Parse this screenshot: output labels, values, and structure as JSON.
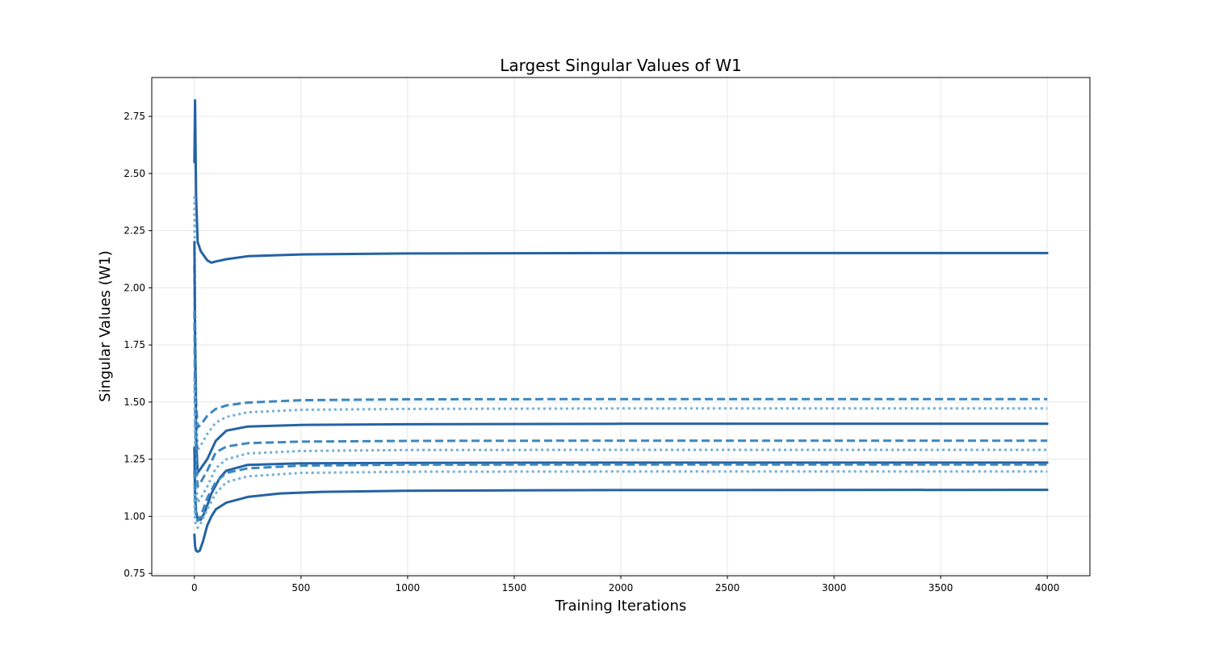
{
  "chart_data": {
    "type": "line",
    "title": "Largest Singular Values of W1",
    "xlabel": "Training Iterations",
    "ylabel": "Singular Values (W1)",
    "xlim": [
      -200,
      4200
    ],
    "ylim": [
      0.74,
      2.92
    ],
    "xticks": [
      0,
      500,
      1000,
      1500,
      2000,
      2500,
      3000,
      3500,
      4000
    ],
    "xtick_labels": [
      "0",
      "500",
      "1000",
      "1500",
      "2000",
      "2500",
      "3000",
      "3500",
      "4000"
    ],
    "yticks": [
      0.75,
      1.0,
      1.25,
      1.5,
      1.75,
      2.0,
      2.25,
      2.5,
      2.75
    ],
    "ytick_labels": [
      "0.75",
      "1.00",
      "1.25",
      "1.50",
      "1.75",
      "2.00",
      "2.25",
      "2.50",
      "2.75"
    ],
    "grid": true,
    "legend": "none",
    "series": [
      {
        "style": "solid",
        "color": "#2463a4",
        "x": [
          0,
          3,
          8,
          15,
          30,
          60,
          80,
          100,
          150,
          250,
          500,
          1000,
          2000,
          4000
        ],
        "y": [
          2.55,
          2.82,
          2.4,
          2.2,
          2.16,
          2.12,
          2.11,
          2.115,
          2.125,
          2.138,
          2.146,
          2.15,
          2.152,
          2.152
        ]
      },
      {
        "style": "dashed",
        "color": "#3b87be",
        "x": [
          0,
          3,
          8,
          15,
          30,
          60,
          100,
          150,
          250,
          500,
          1000,
          2000,
          4000
        ],
        "y": [
          2.1,
          1.8,
          1.5,
          1.39,
          1.4,
          1.44,
          1.47,
          1.485,
          1.498,
          1.508,
          1.512,
          1.513,
          1.513
        ]
      },
      {
        "style": "dotted",
        "color": "#72afd9",
        "x": [
          0,
          3,
          8,
          15,
          30,
          60,
          100,
          150,
          250,
          500,
          1000,
          2000,
          4000
        ],
        "y": [
          2.4,
          1.9,
          1.45,
          1.29,
          1.31,
          1.36,
          1.41,
          1.435,
          1.455,
          1.466,
          1.47,
          1.472,
          1.472
        ]
      },
      {
        "style": "solid",
        "color": "#2463a4",
        "x": [
          0,
          3,
          8,
          15,
          30,
          60,
          100,
          150,
          250,
          500,
          1000,
          2000,
          4000
        ],
        "y": [
          2.2,
          1.8,
          1.35,
          1.19,
          1.21,
          1.25,
          1.33,
          1.375,
          1.393,
          1.4,
          1.403,
          1.405,
          1.405
        ]
      },
      {
        "style": "dashed",
        "color": "#3b87be",
        "x": [
          0,
          3,
          8,
          15,
          30,
          60,
          100,
          150,
          250,
          500,
          1000,
          2000,
          4000
        ],
        "y": [
          1.9,
          1.5,
          1.25,
          1.13,
          1.15,
          1.2,
          1.28,
          1.305,
          1.32,
          1.327,
          1.33,
          1.331,
          1.331
        ]
      },
      {
        "style": "dotted",
        "color": "#72afd9",
        "x": [
          0,
          3,
          8,
          15,
          30,
          60,
          100,
          150,
          250,
          500,
          1000,
          2000,
          4000
        ],
        "y": [
          1.6,
          1.3,
          1.15,
          1.06,
          1.08,
          1.13,
          1.21,
          1.25,
          1.275,
          1.286,
          1.29,
          1.291,
          1.291
        ]
      },
      {
        "style": "solid",
        "color": "#2463a4",
        "x": [
          0,
          3,
          8,
          15,
          30,
          50,
          80,
          120,
          150,
          250,
          500,
          1000,
          2000,
          4000
        ],
        "y": [
          1.3,
          1.1,
          1.02,
          0.99,
          0.985,
          1.02,
          1.1,
          1.17,
          1.2,
          1.225,
          1.232,
          1.234,
          1.235,
          1.235
        ]
      },
      {
        "style": "dashed",
        "color": "#3b87be",
        "x": [
          0,
          3,
          8,
          15,
          30,
          60,
          100,
          150,
          250,
          500,
          1000,
          2000,
          4000
        ],
        "y": [
          1.2,
          1.05,
          1.0,
          0.98,
          1.0,
          1.08,
          1.15,
          1.19,
          1.21,
          1.222,
          1.226,
          1.227,
          1.227
        ]
      },
      {
        "style": "dotted",
        "color": "#72afd9",
        "x": [
          0,
          3,
          8,
          15,
          30,
          60,
          100,
          150,
          250,
          500,
          1000,
          2000,
          4000
        ],
        "y": [
          1.1,
          0.98,
          0.96,
          0.95,
          0.97,
          1.03,
          1.1,
          1.15,
          1.175,
          1.19,
          1.195,
          1.196,
          1.196
        ]
      },
      {
        "style": "solid",
        "color": "#2463a4",
        "x": [
          0,
          3,
          8,
          15,
          25,
          40,
          60,
          80,
          100,
          150,
          250,
          400,
          600,
          1000,
          2000,
          4000
        ],
        "y": [
          0.92,
          0.87,
          0.85,
          0.845,
          0.85,
          0.89,
          0.96,
          1.0,
          1.03,
          1.06,
          1.085,
          1.1,
          1.107,
          1.112,
          1.115,
          1.116
        ]
      }
    ]
  }
}
